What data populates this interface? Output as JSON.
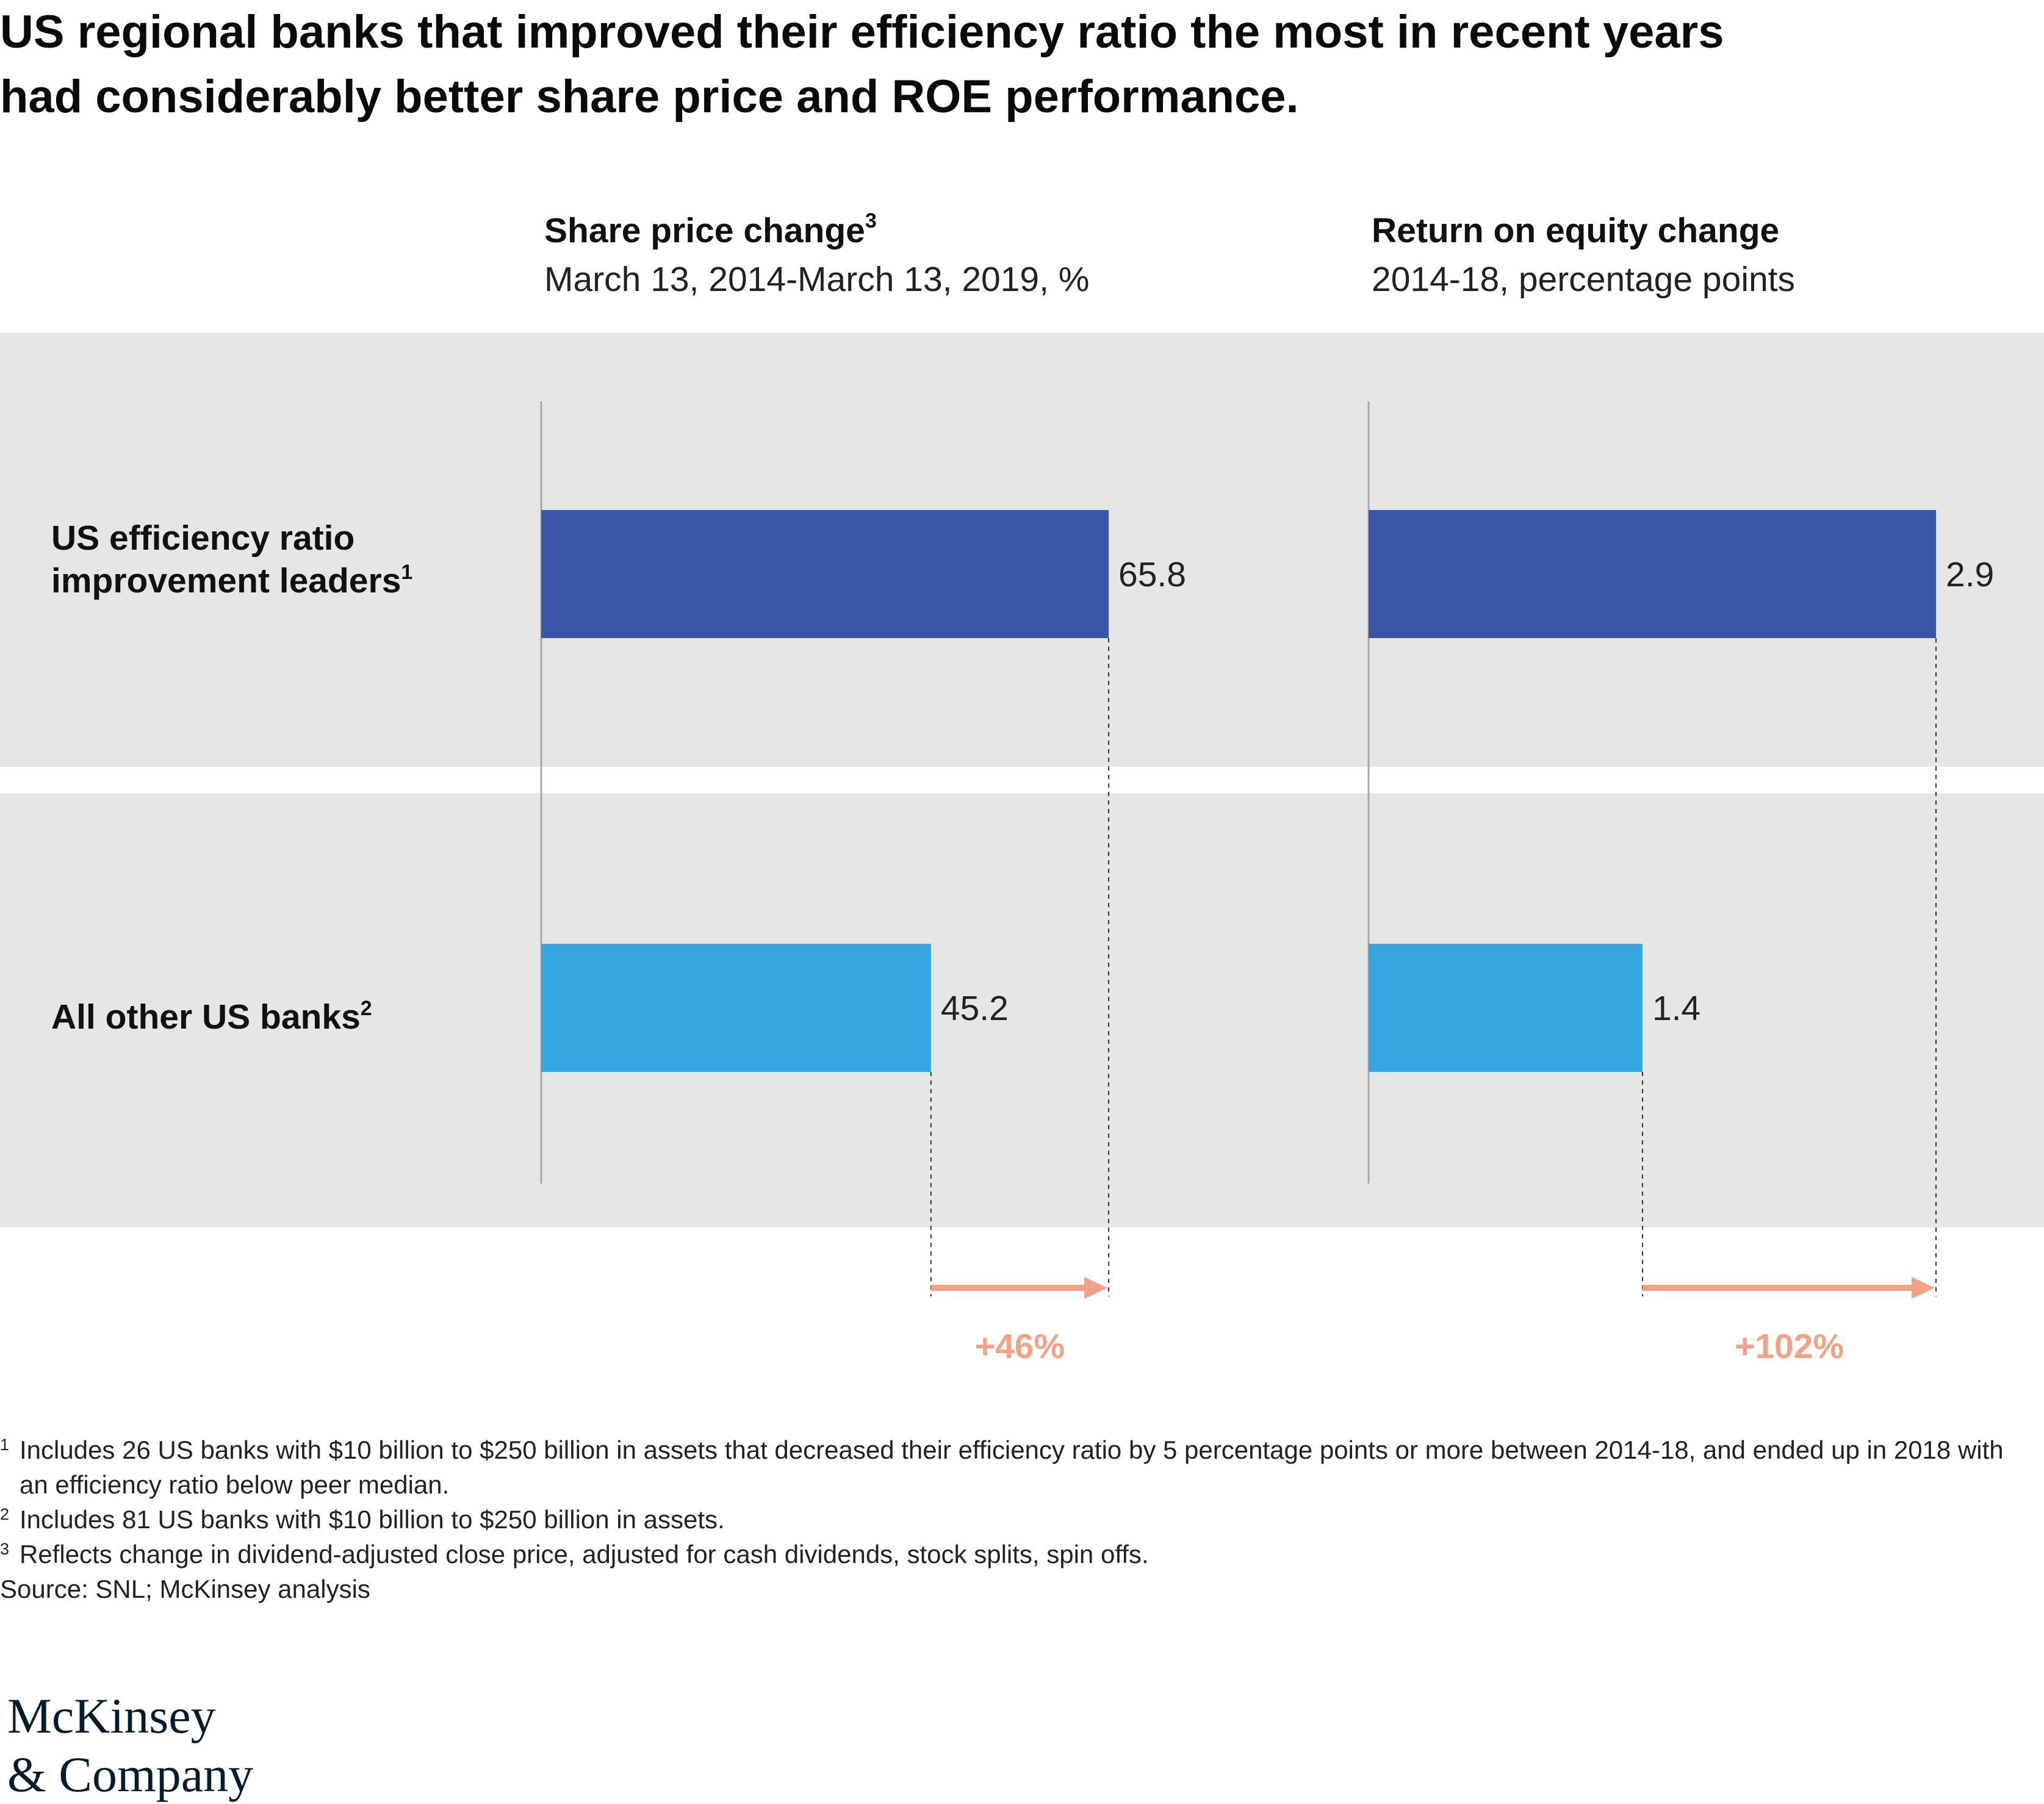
{
  "headline": {
    "line1": "US regional banks that improved their efficiency ratio the most in recent years",
    "line2": "had considerably better share price and ROE performance."
  },
  "colors": {
    "band": "#e6e6e6",
    "leaders": "#3c56a7",
    "others": "#35a6df",
    "arrow": "#f2a287",
    "axis": "#a8a8a8"
  },
  "rows": [
    {
      "label_line1": "US efficiency ratio",
      "label_line2": "improvement leaders",
      "footnote_mark": "1"
    },
    {
      "label_line1": "All other US banks",
      "label_line2": "",
      "footnote_mark": "2"
    }
  ],
  "chart_data": [
    {
      "type": "bar",
      "orientation": "horizontal",
      "title": "Share price change",
      "title_footnote": "3",
      "subtitle": "March 13, 2014-March 13, 2019, %",
      "categories": [
        "US efficiency ratio improvement leaders",
        "All other US banks"
      ],
      "values": [
        65.8,
        45.2
      ],
      "value_labels": [
        "65.8",
        "45.2"
      ],
      "difference_label": "+46%",
      "grid": false
    },
    {
      "type": "bar",
      "orientation": "horizontal",
      "title": "Return on equity change",
      "subtitle": "2014-18, percentage points",
      "categories": [
        "US efficiency ratio improvement leaders",
        "All other US banks"
      ],
      "values": [
        2.9,
        1.4
      ],
      "value_labels": [
        "2.9",
        "1.4"
      ],
      "difference_label": "+102%",
      "grid": false
    }
  ],
  "footnotes": [
    {
      "mark": "1",
      "text": "Includes 26 US banks with $10 billion to $250 billion in assets that decreased their efficiency ratio by 5 percentage points or more between 2014-18, and ended up in 2018 with an efficiency ratio below peer median."
    },
    {
      "mark": "2",
      "text": "Includes 81 US banks with $10 billion to $250 billion in assets."
    },
    {
      "mark": "3",
      "text": "Reflects change in dividend-adjusted close price, adjusted for cash dividends, stock splits, spin offs."
    }
  ],
  "source": "Source: SNL; McKinsey analysis",
  "logo": {
    "line1": "McKinsey",
    "line2": "& Company"
  }
}
